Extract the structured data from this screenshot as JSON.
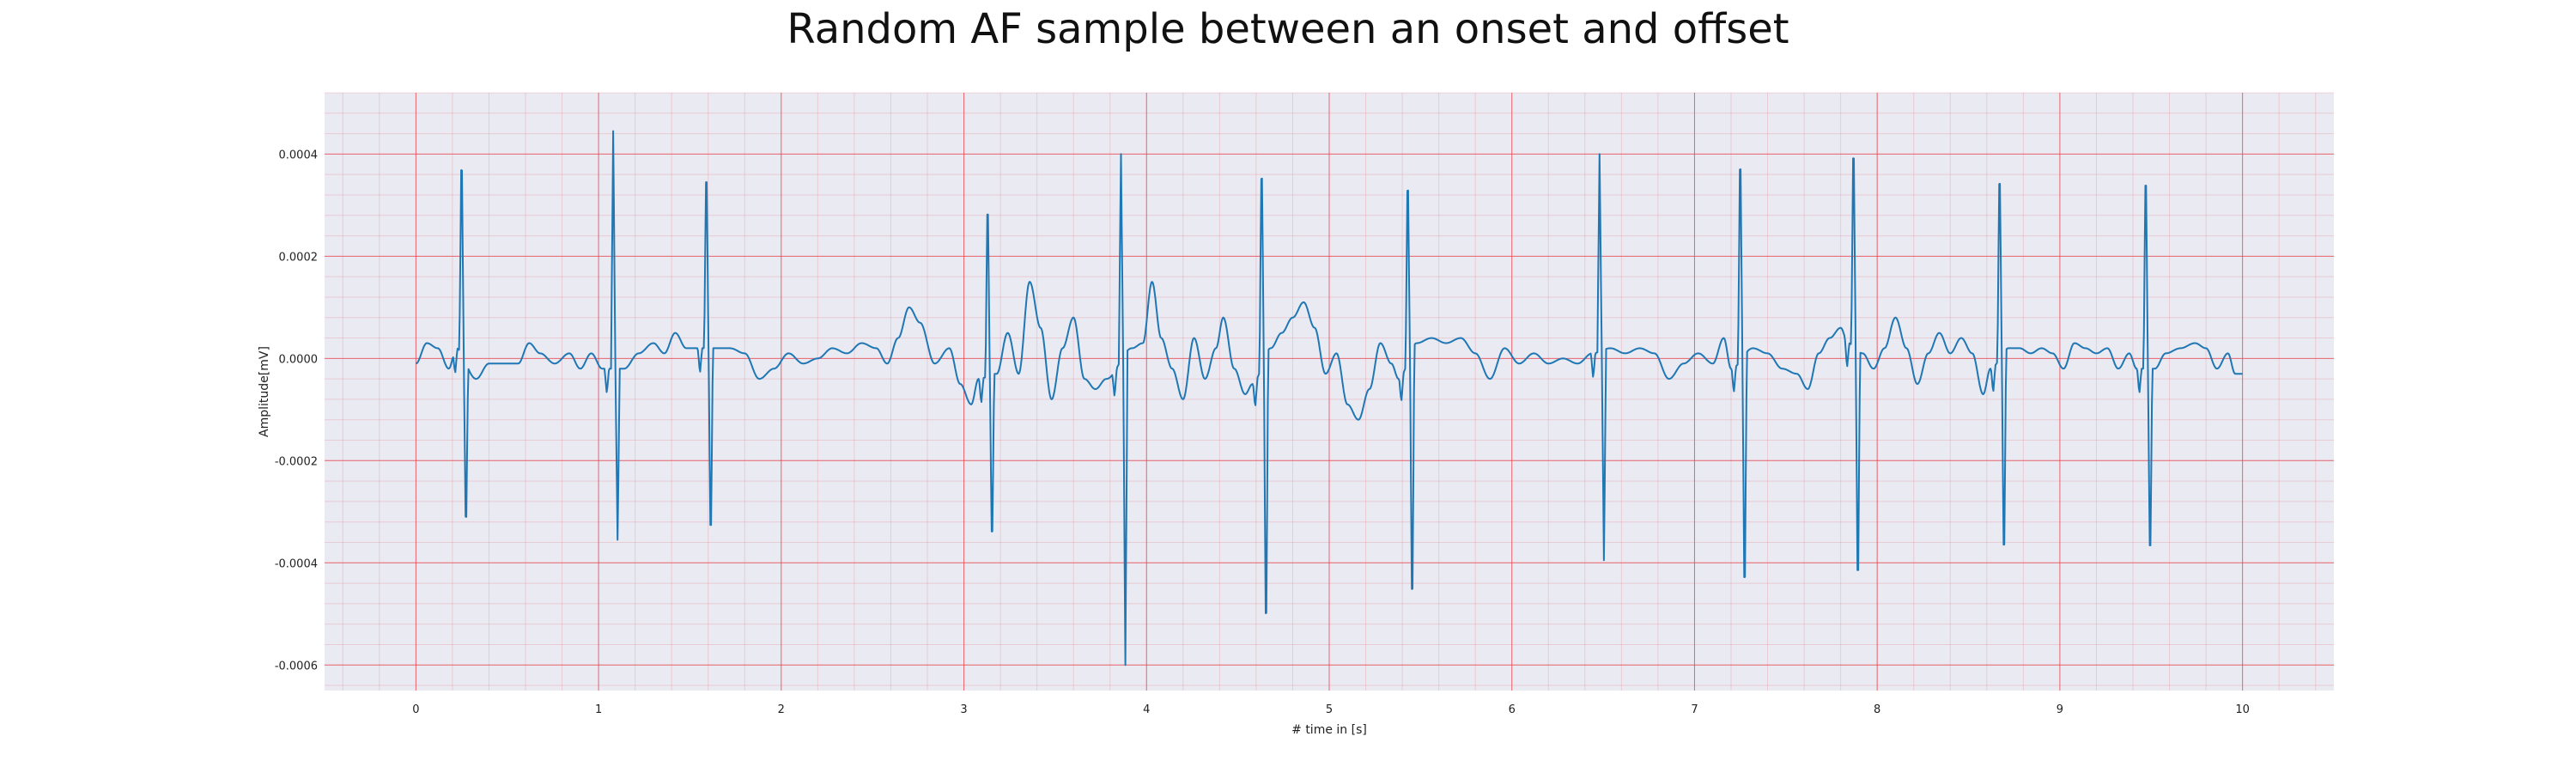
{
  "chart_data": {
    "type": "line",
    "title": "Random AF sample between an onset and offset",
    "xlabel": "# time in [s]",
    "ylabel": "Amplitude[mV]",
    "xlim": [
      -0.5,
      10.5
    ],
    "ylim": [
      -0.00065,
      0.00052
    ],
    "xticks": [
      0,
      1,
      2,
      3,
      4,
      5,
      6,
      7,
      8,
      9,
      10
    ],
    "xtick_labels": [
      "0",
      "1",
      "2",
      "3",
      "4",
      "5",
      "6",
      "7",
      "8",
      "9",
      "10"
    ],
    "yticks": [
      0.0004,
      0.0002,
      0.0,
      -0.0002,
      -0.0004,
      -0.0006
    ],
    "ytick_labels": [
      "0.0004",
      "0.0002",
      "0.0000",
      "-0.0002",
      "-0.0004",
      "-0.0006"
    ],
    "grid": true,
    "minor_grid": true,
    "background_color": "#eaeaf2",
    "grid_color": "#e8444d",
    "line_color": "#1f77b4",
    "series": [
      {
        "beats": [
          {
            "t": 0.25,
            "peak": 0.00044,
            "trough": -0.00037
          },
          {
            "t": 1.08,
            "peak": 0.000445,
            "trough": -0.000355
          },
          {
            "t": 1.59,
            "peak": 0.00041,
            "trough": -0.000395
          },
          {
            "t": 3.13,
            "peak": 0.000345,
            "trough": -0.0004
          },
          {
            "t": 3.86,
            "peak": 0.0004,
            "trough": -0.0006
          },
          {
            "t": 4.63,
            "peak": 0.000425,
            "trough": -0.0006
          },
          {
            "t": 5.43,
            "peak": 0.000395,
            "trough": -0.000545
          },
          {
            "t": 6.48,
            "peak": 0.0004,
            "trough": -0.000395
          },
          {
            "t": 7.25,
            "peak": 0.000445,
            "trough": -0.000515
          },
          {
            "t": 7.87,
            "peak": 0.000465,
            "trough": -0.0005
          },
          {
            "t": 8.67,
            "peak": 0.00041,
            "trough": -0.00044
          },
          {
            "t": 9.47,
            "peak": 0.00041,
            "trough": -0.000435
          }
        ],
        "baseline": [
          [
            0.0,
            -1e-05
          ],
          [
            0.06,
            3e-05
          ],
          [
            0.12,
            2e-05
          ],
          [
            0.18,
            -2e-05
          ],
          [
            0.22,
            2e-05
          ],
          [
            0.33,
            -4e-05
          ],
          [
            0.4,
            -1e-05
          ],
          [
            0.48,
            -1e-05
          ],
          [
            0.56,
            -1e-05
          ],
          [
            0.62,
            3e-05
          ],
          [
            0.68,
            1e-05
          ],
          [
            0.76,
            -1e-05
          ],
          [
            0.84,
            1e-05
          ],
          [
            0.9,
            -2e-05
          ],
          [
            0.96,
            1e-05
          ],
          [
            1.02,
            -2e-05
          ],
          [
            1.14,
            -2e-05
          ],
          [
            1.22,
            1e-05
          ],
          [
            1.3,
            3e-05
          ],
          [
            1.36,
            1e-05
          ],
          [
            1.42,
            5e-05
          ],
          [
            1.48,
            2e-05
          ],
          [
            1.54,
            2e-05
          ],
          [
            1.65,
            2e-05
          ],
          [
            1.72,
            2e-05
          ],
          [
            1.8,
            1e-05
          ],
          [
            1.88,
            -4e-05
          ],
          [
            1.96,
            -2e-05
          ],
          [
            2.04,
            1e-05
          ],
          [
            2.12,
            -1e-05
          ],
          [
            2.2,
            0.0
          ],
          [
            2.28,
            2e-05
          ],
          [
            2.36,
            1e-05
          ],
          [
            2.44,
            3e-05
          ],
          [
            2.52,
            2e-05
          ],
          [
            2.58,
            -1e-05
          ],
          [
            2.64,
            4e-05
          ],
          [
            2.7,
            0.0001
          ],
          [
            2.76,
            7e-05
          ],
          [
            2.84,
            -1e-05
          ],
          [
            2.92,
            2e-05
          ],
          [
            2.98,
            -5e-05
          ],
          [
            3.04,
            -9e-05
          ],
          [
            3.08,
            -4e-05
          ],
          [
            3.18,
            -3e-05
          ],
          [
            3.24,
            5e-05
          ],
          [
            3.3,
            -3e-05
          ],
          [
            3.36,
            0.00015
          ],
          [
            3.42,
            6e-05
          ],
          [
            3.48,
            -8e-05
          ],
          [
            3.54,
            2e-05
          ],
          [
            3.6,
            8e-05
          ],
          [
            3.66,
            -4e-05
          ],
          [
            3.72,
            -6e-05
          ],
          [
            3.78,
            -4e-05
          ],
          [
            3.92,
            2e-05
          ],
          [
            3.98,
            3e-05
          ],
          [
            4.03,
            0.00015
          ],
          [
            4.08,
            4e-05
          ],
          [
            4.14,
            -2e-05
          ],
          [
            4.2,
            -8e-05
          ],
          [
            4.26,
            4e-05
          ],
          [
            4.32,
            -4e-05
          ],
          [
            4.38,
            2e-05
          ],
          [
            4.42,
            8e-05
          ],
          [
            4.48,
            -2e-05
          ],
          [
            4.54,
            -7e-05
          ],
          [
            4.58,
            -5e-05
          ],
          [
            4.68,
            2e-05
          ],
          [
            4.74,
            5e-05
          ],
          [
            4.8,
            8e-05
          ],
          [
            4.86,
            0.00011
          ],
          [
            4.92,
            6e-05
          ],
          [
            4.98,
            -3e-05
          ],
          [
            5.04,
            1e-05
          ],
          [
            5.1,
            -9e-05
          ],
          [
            5.16,
            -0.00012
          ],
          [
            5.22,
            -6e-05
          ],
          [
            5.28,
            3e-05
          ],
          [
            5.34,
            -1e-05
          ],
          [
            5.38,
            -4e-05
          ],
          [
            5.48,
            3e-05
          ],
          [
            5.56,
            4e-05
          ],
          [
            5.64,
            3e-05
          ],
          [
            5.72,
            4e-05
          ],
          [
            5.8,
            1e-05
          ],
          [
            5.88,
            -4e-05
          ],
          [
            5.96,
            2e-05
          ],
          [
            6.04,
            -1e-05
          ],
          [
            6.12,
            1e-05
          ],
          [
            6.2,
            -1e-05
          ],
          [
            6.28,
            0.0
          ],
          [
            6.36,
            -1e-05
          ],
          [
            6.44,
            1e-05
          ],
          [
            6.54,
            2e-05
          ],
          [
            6.62,
            1e-05
          ],
          [
            6.7,
            2e-05
          ],
          [
            6.78,
            1e-05
          ],
          [
            6.86,
            -4e-05
          ],
          [
            6.94,
            -1e-05
          ],
          [
            7.02,
            1e-05
          ],
          [
            7.1,
            -1e-05
          ],
          [
            7.16,
            4e-05
          ],
          [
            7.2,
            -2e-05
          ],
          [
            7.32,
            2e-05
          ],
          [
            7.4,
            1e-05
          ],
          [
            7.48,
            -2e-05
          ],
          [
            7.56,
            -3e-05
          ],
          [
            7.62,
            -6e-05
          ],
          [
            7.68,
            1e-05
          ],
          [
            7.74,
            4e-05
          ],
          [
            7.8,
            6e-05
          ],
          [
            7.84,
            3e-05
          ],
          [
            7.92,
            1e-05
          ],
          [
            7.98,
            -2e-05
          ],
          [
            8.04,
            2e-05
          ],
          [
            8.1,
            8e-05
          ],
          [
            8.16,
            2e-05
          ],
          [
            8.22,
            -5e-05
          ],
          [
            8.28,
            1e-05
          ],
          [
            8.34,
            5e-05
          ],
          [
            8.4,
            1e-05
          ],
          [
            8.46,
            4e-05
          ],
          [
            8.52,
            1e-05
          ],
          [
            8.58,
            -7e-05
          ],
          [
            8.62,
            -2e-05
          ],
          [
            8.72,
            2e-05
          ],
          [
            8.78,
            2e-05
          ],
          [
            8.84,
            1e-05
          ],
          [
            8.9,
            2e-05
          ],
          [
            8.96,
            1e-05
          ],
          [
            9.02,
            -2e-05
          ],
          [
            9.08,
            3e-05
          ],
          [
            9.14,
            2e-05
          ],
          [
            9.2,
            1e-05
          ],
          [
            9.26,
            2e-05
          ],
          [
            9.32,
            -2e-05
          ],
          [
            9.38,
            1e-05
          ],
          [
            9.42,
            -2e-05
          ],
          [
            9.52,
            -2e-05
          ],
          [
            9.58,
            1e-05
          ],
          [
            9.66,
            2e-05
          ],
          [
            9.74,
            3e-05
          ],
          [
            9.8,
            2e-05
          ],
          [
            9.86,
            -2e-05
          ],
          [
            9.92,
            1e-05
          ],
          [
            9.96,
            -3e-05
          ],
          [
            10.0,
            -3e-05
          ]
        ]
      }
    ]
  }
}
